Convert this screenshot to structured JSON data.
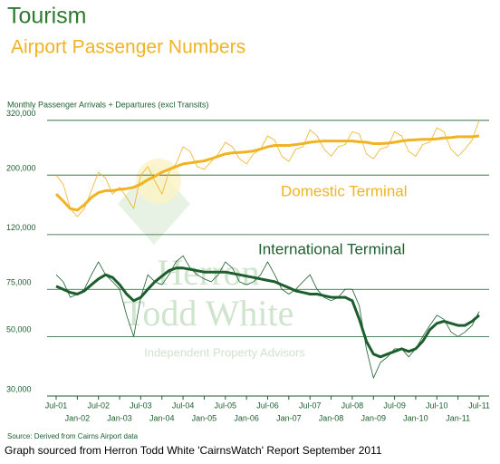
{
  "chart_data": {
    "type": "line",
    "title": "Tourism",
    "subtitle": "Airport Passenger Numbers",
    "y_label": "Monthly Passenger Arrivals + Departures (excl Transits)",
    "source": "Source: Derived from Cairns Airport data",
    "footer": "Graph sourced from Herron Todd White 'CairnsWatch' Report September 2011",
    "watermark": [
      "Herron",
      "Todd White",
      "Independent Property Advisors"
    ],
    "log_scale": true,
    "grid": true,
    "ylim": [
      30000,
      340000
    ],
    "yticks": [
      {
        "value": 30000,
        "label": "30,000"
      },
      {
        "value": 50000,
        "label": "50,000"
      },
      {
        "value": 75000,
        "label": "75,000"
      },
      {
        "value": 120000,
        "label": "120,000"
      },
      {
        "value": 200000,
        "label": "200,000"
      },
      {
        "value": 320000,
        "label": "320,000"
      }
    ],
    "categories": [
      "Jul-01",
      null,
      null,
      "Jan-02",
      null,
      null,
      "Jul-02",
      null,
      null,
      "Jan-03",
      null,
      null,
      "Jul-03",
      null,
      null,
      "Jan-04",
      null,
      null,
      "Jul-04",
      null,
      null,
      "Jan-05",
      null,
      null,
      "Jul-05",
      null,
      null,
      "Jan-06",
      null,
      null,
      "Jul-06",
      null,
      null,
      "Jan-07",
      null,
      null,
      "Jul-07",
      null,
      null,
      "Jan-08",
      null,
      null,
      "Jul-08",
      null,
      null,
      "Jan-09",
      null,
      null,
      "Jul-09",
      null,
      null,
      "Jan-10",
      null,
      null,
      "Jul-10",
      null,
      null,
      "Jan-11",
      null,
      null,
      "Jul-11"
    ],
    "series": [
      {
        "color": "#f0b323",
        "width": 0.8,
        "values": [
          200000,
          185000,
          150000,
          140000,
          150000,
          175000,
          205000,
          195000,
          170000,
          180000,
          165000,
          150000,
          200000,
          215000,
          190000,
          170000,
          205000,
          220000,
          255000,
          245000,
          215000,
          210000,
          225000,
          240000,
          265000,
          255000,
          230000,
          220000,
          240000,
          250000,
          280000,
          270000,
          235000,
          225000,
          250000,
          255000,
          295000,
          280000,
          250000,
          235000,
          255000,
          260000,
          290000,
          285000,
          240000,
          230000,
          250000,
          255000,
          290000,
          280000,
          245000,
          235000,
          260000,
          265000,
          300000,
          290000,
          250000,
          235000,
          250000,
          270000,
          320000
        ]
      },
      {
        "name": "Domestic Terminal",
        "color": "#f0b323",
        "width": 3,
        "values": [
          170000,
          160000,
          150000,
          148000,
          155000,
          165000,
          172000,
          175000,
          175000,
          177000,
          178000,
          180000,
          185000,
          192000,
          198000,
          205000,
          210000,
          215000,
          220000,
          222000,
          224000,
          226000,
          230000,
          235000,
          240000,
          242000,
          243000,
          244000,
          246000,
          250000,
          255000,
          258000,
          258000,
          258000,
          260000,
          262000,
          265000,
          267000,
          268000,
          268000,
          268000,
          268000,
          268000,
          266000,
          265000,
          262000,
          262000,
          263000,
          265000,
          268000,
          270000,
          271000,
          272000,
          272000,
          273000,
          275000,
          276000,
          278000,
          278000,
          278000,
          280000
        ]
      },
      {
        "color": "#1d5e2e",
        "width": 0.8,
        "values": [
          85000,
          80000,
          70000,
          72000,
          75000,
          85000,
          95000,
          85000,
          80000,
          75000,
          60000,
          50000,
          70000,
          85000,
          80000,
          78000,
          85000,
          95000,
          100000,
          90000,
          85000,
          82000,
          80000,
          85000,
          95000,
          90000,
          80000,
          78000,
          80000,
          85000,
          95000,
          85000,
          75000,
          72000,
          75000,
          80000,
          85000,
          75000,
          70000,
          68000,
          70000,
          75000,
          75000,
          65000,
          45000,
          35000,
          40000,
          42000,
          45000,
          45000,
          42000,
          45000,
          50000,
          55000,
          60000,
          58000,
          52000,
          50000,
          52000,
          55000,
          62000
        ]
      },
      {
        "name": "International Terminal",
        "color": "#1d5e2e",
        "width": 3,
        "values": [
          77000,
          75000,
          73000,
          72000,
          74000,
          78000,
          82000,
          85000,
          83000,
          78000,
          72000,
          68000,
          70000,
          75000,
          80000,
          84000,
          88000,
          90000,
          90000,
          89000,
          88000,
          87000,
          87000,
          87000,
          87000,
          86000,
          85000,
          84000,
          83000,
          82000,
          81000,
          80000,
          78000,
          76000,
          74000,
          73000,
          72000,
          72000,
          71000,
          70000,
          70000,
          70000,
          68000,
          58000,
          48000,
          43000,
          42000,
          43000,
          44000,
          45000,
          44000,
          45000,
          48000,
          53000,
          56000,
          57000,
          56000,
          55000,
          55000,
          57000,
          60000
        ]
      }
    ]
  }
}
